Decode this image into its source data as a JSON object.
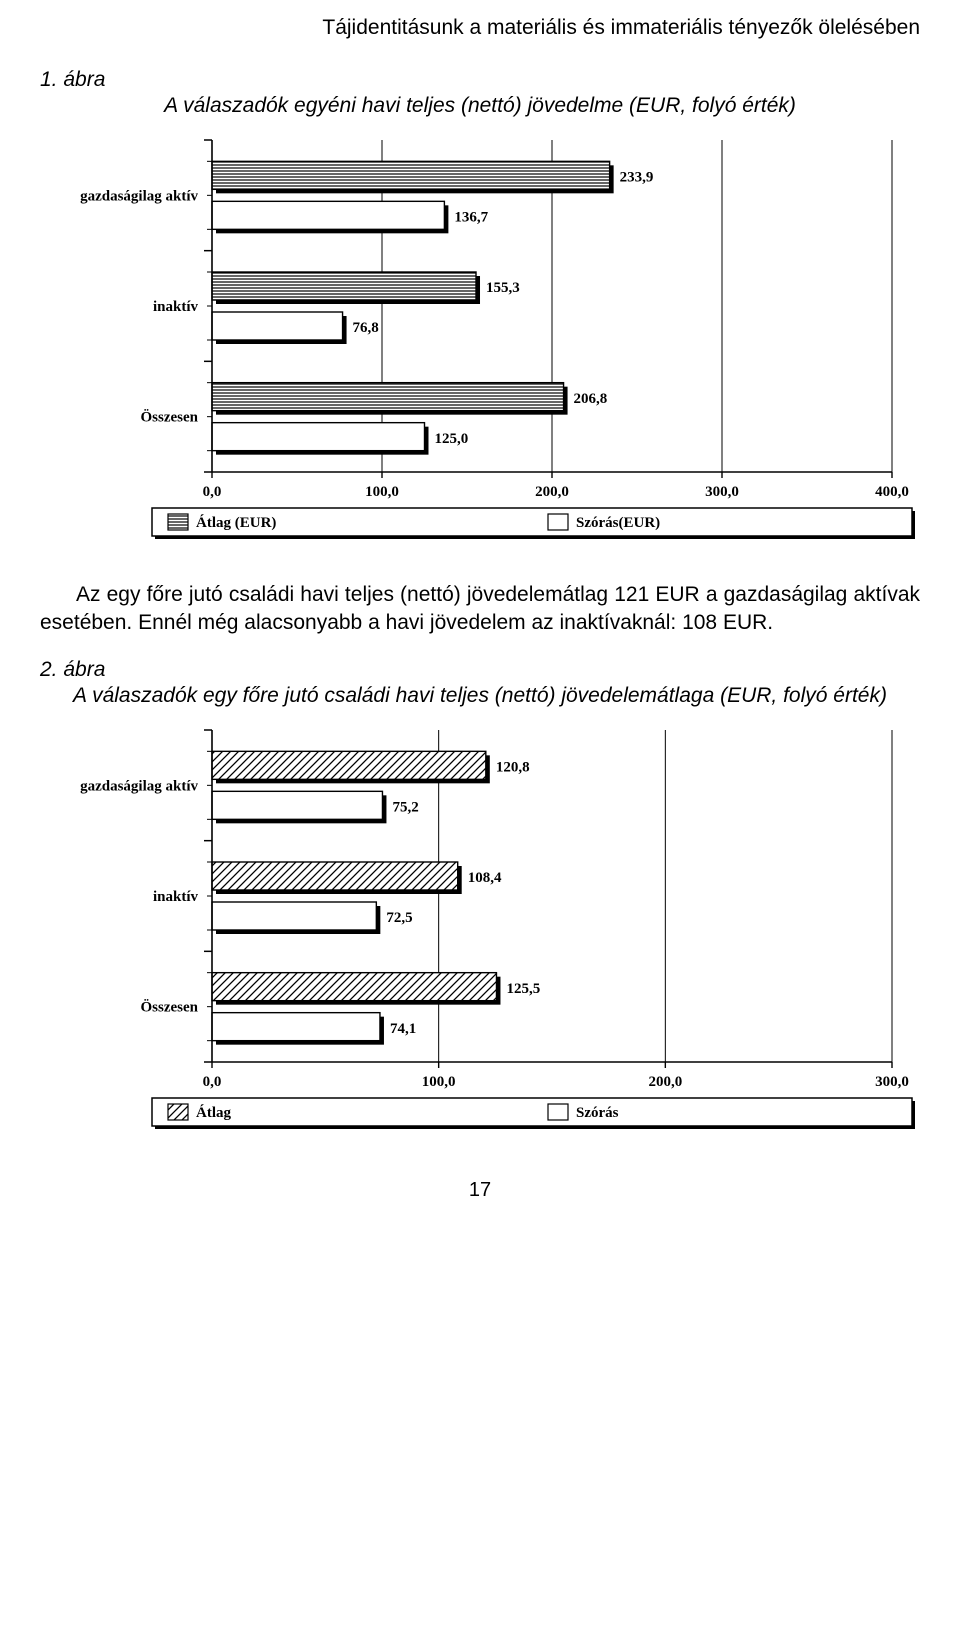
{
  "header": "Tájidentitásunk a materiális és immateriális tényezők ölelésében",
  "fig1": {
    "label": "1. ábra",
    "caption": "A válaszadók egyéni havi teljes (nettó) jövedelme (EUR, folyó érték)"
  },
  "chart1": {
    "type": "bar",
    "orientation": "horizontal",
    "background_color": "#ffffff",
    "bar_fill_atlag": "#ffffff",
    "bar_fill_szoras": "#ffffff",
    "bar_pattern_atlag": "horiz-stripes",
    "bar_border": "#000000",
    "bar_shadow": "#000000",
    "axis_color": "#000000",
    "grid_color": "#000000",
    "font_family": "serif",
    "axis_fontsize": 15,
    "cat_fontsize": 15,
    "val_fontsize": 15,
    "legend_fontsize": 15,
    "xlim": [
      0.0,
      400.0
    ],
    "xticks": [
      "0,0",
      "100,0",
      "200,0",
      "300,0",
      "400,0"
    ],
    "xtick_vals": [
      0,
      100,
      200,
      300,
      400
    ],
    "categories": [
      "gazdaságilag aktív",
      "inaktív",
      "Összesen"
    ],
    "series": [
      {
        "name": "Átlag (EUR)",
        "pattern": "horiz-stripes",
        "data": [
          {
            "cat": "gazdaságilag aktív",
            "val": 233.9,
            "label": "233,9"
          },
          {
            "cat": "inaktív",
            "val": 155.3,
            "label": "155,3"
          },
          {
            "cat": "Összesen",
            "val": 206.8,
            "label": "206,8"
          }
        ]
      },
      {
        "name": "Szórás(EUR)",
        "pattern": "none",
        "data": [
          {
            "cat": "gazdaságilag aktív",
            "val": 136.7,
            "label": "136,7"
          },
          {
            "cat": "inaktív",
            "val": 76.8,
            "label": "76,8"
          },
          {
            "cat": "Összesen",
            "val": 125.0,
            "label": "125,0"
          }
        ]
      }
    ],
    "legend_box": true
  },
  "paragraph1_a": "Az egy főre jutó családi havi teljes (nettó) jövedelemátlag 121",
  "paragraph1_b": "EUR a gazdaságilag aktívak esetében. Ennél még alacsonyabb a havi jövedelem az inaktívaknál: 108 EUR.",
  "fig2": {
    "label": "2. ábra",
    "caption": "A válaszadók egy főre jutó családi havi teljes (nettó) jövedelemátlaga (EUR, folyó érték)"
  },
  "chart2": {
    "type": "bar",
    "orientation": "horizontal",
    "background_color": "#ffffff",
    "bar_fill_atlag": "#ffffff",
    "bar_fill_szoras": "#ffffff",
    "bar_pattern_atlag": "diag-stripes",
    "bar_border": "#000000",
    "bar_shadow": "#000000",
    "axis_color": "#000000",
    "grid_color": "#000000",
    "font_family": "serif",
    "axis_fontsize": 15,
    "cat_fontsize": 15,
    "val_fontsize": 15,
    "legend_fontsize": 15,
    "xlim": [
      0.0,
      300.0
    ],
    "xticks": [
      "0,0",
      "100,0",
      "200,0",
      "300,0"
    ],
    "xtick_vals": [
      0,
      100,
      200,
      300
    ],
    "categories": [
      "gazdaságilag aktív",
      "inaktív",
      "Összesen"
    ],
    "series": [
      {
        "name": "Átlag",
        "pattern": "diag-stripes",
        "data": [
          {
            "cat": "gazdaságilag aktív",
            "val": 120.8,
            "label": "120,8"
          },
          {
            "cat": "inaktív",
            "val": 108.4,
            "label": "108,4"
          },
          {
            "cat": "Összesen",
            "val": 125.5,
            "label": "125,5"
          }
        ]
      },
      {
        "name": "Szórás",
        "pattern": "none",
        "data": [
          {
            "cat": "gazdaságilag aktív",
            "val": 75.2,
            "label": "75,2"
          },
          {
            "cat": "inaktív",
            "val": 72.5,
            "label": "72,5"
          },
          {
            "cat": "Összesen",
            "val": 74.1,
            "label": "74,1"
          }
        ]
      }
    ],
    "legend_box": true
  },
  "page_number": "17"
}
